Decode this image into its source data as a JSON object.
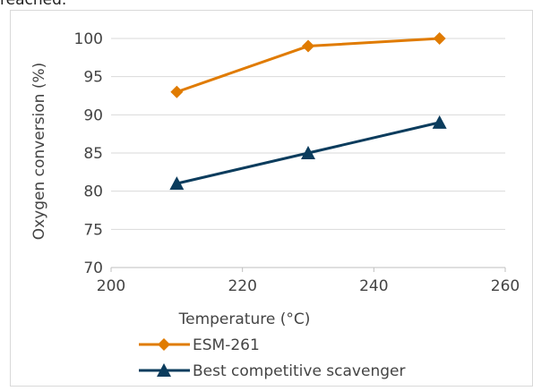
{
  "top_text": "reached.",
  "chart_data": {
    "type": "line",
    "title": "",
    "xlabel": "Temperature (°C)",
    "ylabel": "Oxygen conversion (%)",
    "xlim": [
      200,
      260
    ],
    "ylim": [
      70,
      100
    ],
    "x_ticks": [
      200,
      220,
      240,
      260
    ],
    "y_ticks": [
      70,
      75,
      80,
      85,
      90,
      95,
      100
    ],
    "x": [
      210,
      230,
      250
    ],
    "grid": "horizontal",
    "legend_position": "bottom",
    "series": [
      {
        "name": "ESM-261",
        "values": [
          93,
          99,
          100
        ],
        "color": "#E07B00",
        "marker": "diamond"
      },
      {
        "name": "Best competitive scavenger",
        "values": [
          81,
          85,
          89
        ],
        "color": "#0B3C5D",
        "marker": "triangle"
      }
    ]
  }
}
